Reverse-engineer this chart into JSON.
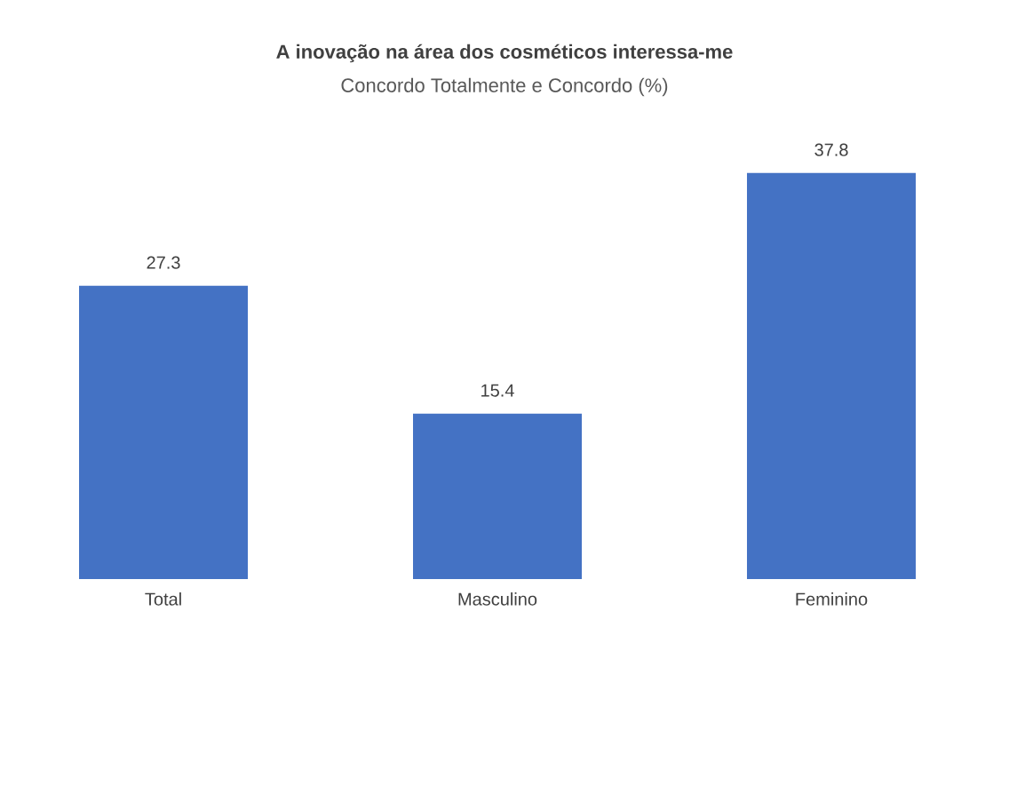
{
  "chart_data": {
    "type": "bar",
    "title": "A inovação na área dos cosméticos interessa-me",
    "subtitle": "Concordo Totalmente e Concordo (%)",
    "categories": [
      "Total",
      "Masculino",
      "Feminino"
    ],
    "values": [
      27.3,
      15.4,
      37.8
    ],
    "color": "#4472c4",
    "data_labels": true
  }
}
